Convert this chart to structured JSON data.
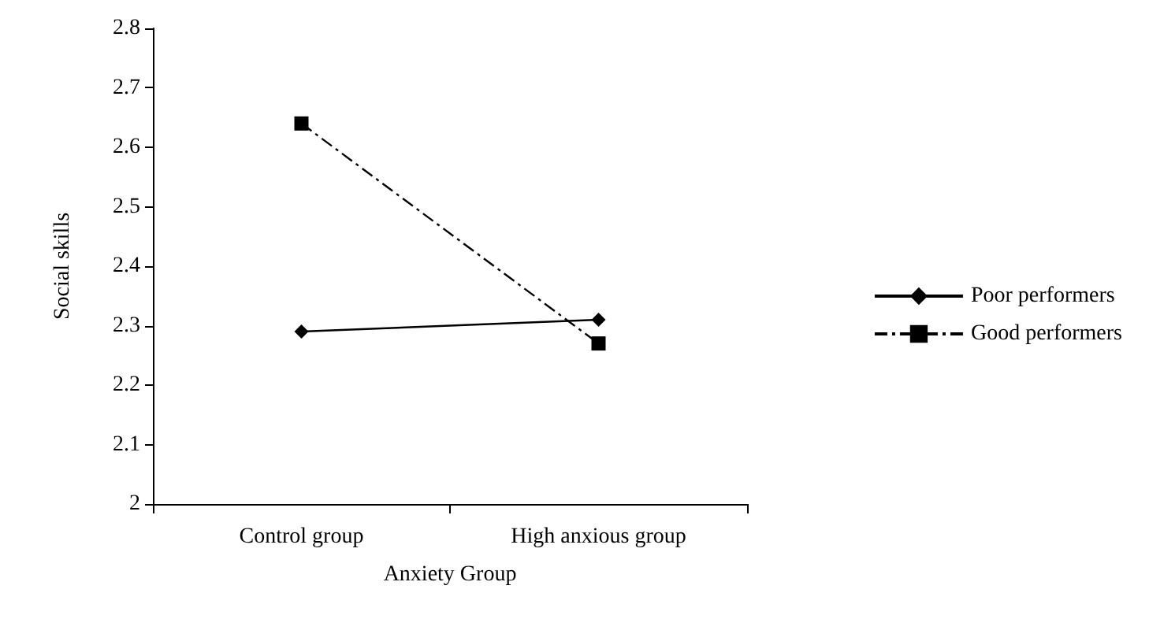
{
  "chart_data": {
    "type": "line",
    "xlabel": "Anxiety Group",
    "ylabel": "Social skills",
    "categories": [
      "Control group",
      "High anxious group"
    ],
    "series": [
      {
        "name": "Poor performers",
        "color": "#000000",
        "values": [
          2.29,
          2.31
        ],
        "marker": "diamond",
        "line_style": "solid"
      },
      {
        "name": "Good performers",
        "color": "#000000",
        "values": [
          2.64,
          2.27
        ],
        "marker": "square",
        "line_style": "dashed"
      }
    ],
    "ylim": [
      2,
      2.8
    ],
    "yticks": [
      2,
      2.1,
      2.2,
      2.3,
      2.4,
      2.5,
      2.6,
      2.7,
      2.8
    ],
    "grid": false,
    "legend": "right"
  }
}
